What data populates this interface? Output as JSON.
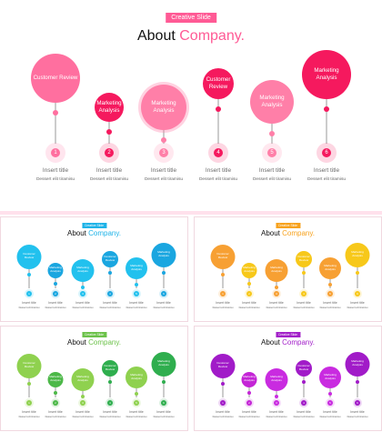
{
  "slides": [
    {
      "tag": "Creative Slide",
      "title_prefix": "About ",
      "title_accent": "Company",
      "title_suffix": ".",
      "accent": "#ff5a95",
      "colors": [
        "#ff6f9f",
        "#f5195e",
        "#ff7fa8",
        "#f5195e",
        "#ff7fa8",
        "#f5195e"
      ],
      "items": [
        {
          "label": "Customer Review",
          "number": "1",
          "title": "Insert title",
          "desc": "Dessert elit tiramisu"
        },
        {
          "label": "Marketing Analysis",
          "number": "2",
          "title": "Insert title",
          "desc": "Dessert elit tiramisu"
        },
        {
          "label": "Marketing Analysis",
          "number": "3",
          "title": "Insert title",
          "desc": "Dessert elit tiramisu"
        },
        {
          "label": "Customer Review",
          "number": "4",
          "title": "Insert title",
          "desc": "Dessert elit tiramisu"
        },
        {
          "label": "Marketing Analysis",
          "number": "5",
          "title": "Insert title",
          "desc": "Dessert elit tiramisu"
        },
        {
          "label": "Marketing Analysis",
          "number": "6",
          "title": "Insert title",
          "desc": "Dessert elit tiramisu"
        }
      ]
    },
    {
      "tag": "Creative Slide",
      "title_prefix": "About ",
      "title_accent": "Company",
      "title_suffix": ".",
      "accent": "#1eb3e8",
      "colors": [
        "#22c1ee",
        "#1aa6e0",
        "#22c1ee",
        "#1aa6e0",
        "#22c1ee",
        "#1aa6e0"
      ],
      "items": [
        {
          "label": "Customer Review",
          "number": "1",
          "title": "Insert title",
          "desc": "Dessert elit tiramisu"
        },
        {
          "label": "Marketing Analysis",
          "number": "2",
          "title": "Insert title",
          "desc": "Dessert elit tiramisu"
        },
        {
          "label": "Marketing Analysis",
          "number": "3",
          "title": "Insert title",
          "desc": "Dessert elit tiramisu"
        },
        {
          "label": "Customer Review",
          "number": "4",
          "title": "Insert title",
          "desc": "Dessert elit tiramisu"
        },
        {
          "label": "Marketing Analysis",
          "number": "5",
          "title": "Insert title",
          "desc": "Dessert elit tiramisu"
        },
        {
          "label": "Marketing Analysis",
          "number": "6",
          "title": "Insert title",
          "desc": "Dessert elit tiramisu"
        }
      ]
    },
    {
      "tag": "Creative Slide",
      "title_prefix": "About ",
      "title_accent": "Company",
      "title_suffix": ".",
      "accent": "#f7a21e",
      "colors": [
        "#f7a033",
        "#f7c81a",
        "#f7a033",
        "#f7c81a",
        "#f7a033",
        "#f7c81a"
      ],
      "items": [
        {
          "label": "Customer Review",
          "number": "1",
          "title": "Insert title",
          "desc": "Dessert elit tiramisu"
        },
        {
          "label": "Marketing Analysis",
          "number": "2",
          "title": "Insert title",
          "desc": "Dessert elit tiramisu"
        },
        {
          "label": "Marketing Analysis",
          "number": "3",
          "title": "Insert title",
          "desc": "Dessert elit tiramisu"
        },
        {
          "label": "Customer Review",
          "number": "4",
          "title": "Insert title",
          "desc": "Dessert elit tiramisu"
        },
        {
          "label": "Marketing Analysis",
          "number": "5",
          "title": "Insert title",
          "desc": "Dessert elit tiramisu"
        },
        {
          "label": "Marketing Analysis",
          "number": "6",
          "title": "Insert title",
          "desc": "Dessert elit tiramisu"
        }
      ]
    },
    {
      "tag": "Creative Slide",
      "title_prefix": "About ",
      "title_accent": "Company",
      "title_suffix": ".",
      "accent": "#6cc24a",
      "colors": [
        "#8fd14f",
        "#4cb848",
        "#8fd14f",
        "#2fae4e",
        "#8fd14f",
        "#2fae4e"
      ],
      "items": [
        {
          "label": "Customer Review",
          "number": "1",
          "title": "Insert title",
          "desc": "Dessert elit tiramisu"
        },
        {
          "label": "Marketing Analysis",
          "number": "2",
          "title": "Insert title",
          "desc": "Dessert elit tiramisu"
        },
        {
          "label": "Marketing Analysis",
          "number": "3",
          "title": "Insert title",
          "desc": "Dessert elit tiramisu"
        },
        {
          "label": "Customer Review",
          "number": "4",
          "title": "Insert title",
          "desc": "Dessert elit tiramisu"
        },
        {
          "label": "Marketing Analysis",
          "number": "5",
          "title": "Insert title",
          "desc": "Dessert elit tiramisu"
        },
        {
          "label": "Marketing Analysis",
          "number": "6",
          "title": "Insert title",
          "desc": "Dessert elit tiramisu"
        }
      ]
    },
    {
      "tag": "Creative Slide",
      "title_prefix": "About ",
      "title_accent": "Company",
      "title_suffix": ".",
      "accent": "#a321c9",
      "colors": [
        "#a11bc8",
        "#c425d6",
        "#c92be0",
        "#a11bc8",
        "#c92be0",
        "#a11bc8"
      ],
      "items": [
        {
          "label": "Customer Review",
          "number": "1",
          "title": "Insert title",
          "desc": "Dessert elit tiramisu"
        },
        {
          "label": "Marketing Analysis",
          "number": "2",
          "title": "Insert title",
          "desc": "Dessert elit tiramisu"
        },
        {
          "label": "Marketing Analysis",
          "number": "3",
          "title": "Insert title",
          "desc": "Dessert elit tiramisu"
        },
        {
          "label": "Customer Review",
          "number": "4",
          "title": "Insert title",
          "desc": "Dessert elit tiramisu"
        },
        {
          "label": "Marketing Analysis",
          "number": "5",
          "title": "Insert title",
          "desc": "Dessert elit tiramisu"
        },
        {
          "label": "Marketing Analysis",
          "number": "6",
          "title": "Insert title",
          "desc": "Dessert elit tiramisu"
        }
      ]
    }
  ]
}
